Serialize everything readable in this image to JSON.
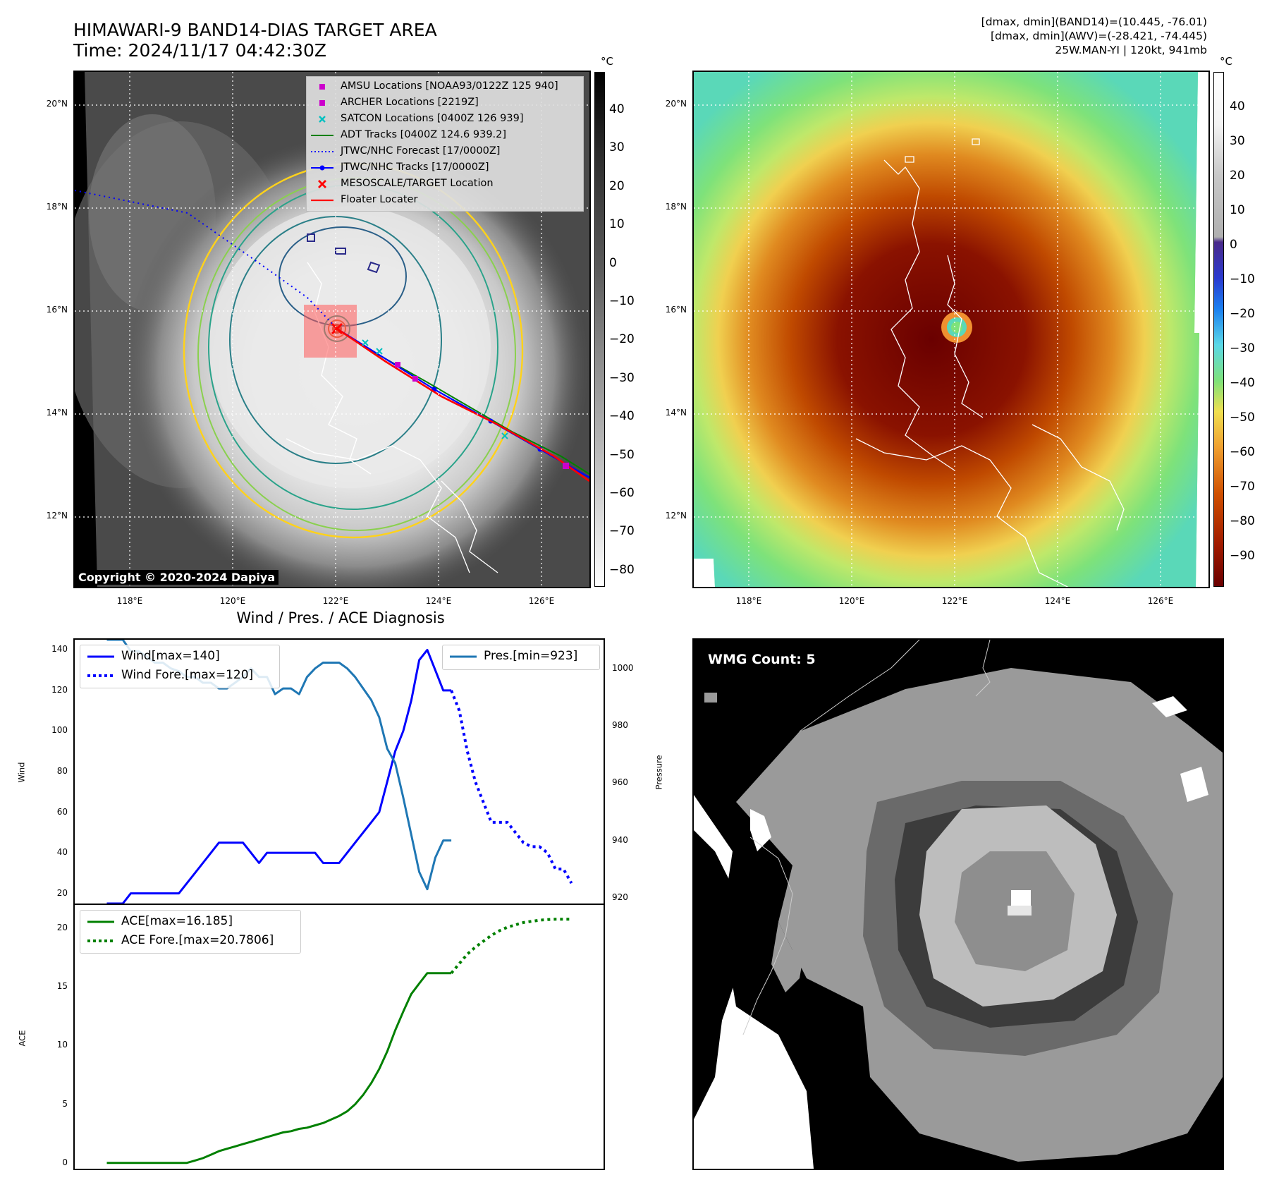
{
  "header": {
    "title_line1": "HIMAWARI-9 BAND14-DIAS TARGET AREA",
    "title_line2": "Time: 2024/11/17 04:42:30Z",
    "info_line1": "[dmax, dmin](BAND14)=(10.445, -76.01)",
    "info_line2": "[dmax, dmin](AWV)=(-28.421, -74.445)",
    "info_line3": "25W.MAN-YI | 120kt, 941mb"
  },
  "map_axes": {
    "lat_labels": [
      "20°N",
      "18°N",
      "16°N",
      "14°N",
      "12°N"
    ],
    "lon_labels": [
      "118°E",
      "120°E",
      "122°E",
      "124°E",
      "126°E"
    ]
  },
  "left_map": {
    "copyright": "Copyright © 2020-2024 Dapiya",
    "colorbar_unit": "°C",
    "colorbar_ticks": [
      "40",
      "30",
      "20",
      "10",
      "0",
      "−10",
      "−20",
      "−30",
      "−40",
      "−50",
      "−60",
      "−70",
      "−80"
    ],
    "legend": [
      {
        "label": "AMSU Locations [NOAA93/0122Z 125 940]",
        "marker": "square",
        "color": "#cc00cc"
      },
      {
        "label": "ARCHER Locations [2219Z]",
        "marker": "square",
        "color": "#cc00cc"
      },
      {
        "label": "SATCON Locations [0400Z 126 939]",
        "marker": "x",
        "color": "#00c0c0"
      },
      {
        "label": "ADT Tracks [0400Z 124.6 939.2]",
        "marker": "line",
        "color": "#008000"
      },
      {
        "label": "JTWC/NHC Forecast [17/0000Z]",
        "marker": "dotted",
        "color": "#0000ff"
      },
      {
        "label": "JTWC/NHC Tracks [17/0000Z]",
        "marker": "line-dot",
        "color": "#0000ff"
      },
      {
        "label": "MESOSCALE/TARGET Location",
        "marker": "x",
        "color": "#ff0000"
      },
      {
        "label": "Floater Locater",
        "marker": "line",
        "color": "#ff0000"
      }
    ],
    "colors": {
      "amsu": "#cc00cc",
      "satcon": "#00c0c0",
      "adt": "#008000",
      "jtwc": "#0000ff",
      "target": "#ff0000"
    }
  },
  "right_map": {
    "colorbar_unit": "°C",
    "colorbar_ticks": [
      "40",
      "30",
      "20",
      "10",
      "0",
      "−10",
      "−20",
      "−30",
      "−40",
      "−50",
      "−60",
      "−70",
      "−80",
      "−90"
    ]
  },
  "wmg": {
    "label": "WMG Count: 5"
  },
  "diagnosis": {
    "title": "Wind / Pres. / ACE Diagnosis",
    "wind_ylabel": "Wind",
    "pres_ylabel": "Pressure",
    "ace_ylabel": "ACE",
    "wind_ticks": [
      "140",
      "120",
      "100",
      "80",
      "60",
      "40",
      "20"
    ],
    "pres_ticks": [
      "1000",
      "980",
      "960",
      "940",
      "920"
    ],
    "ace_ticks": [
      "20",
      "15",
      "10",
      "5",
      "0"
    ],
    "legend_wind": "Wind[max=140]",
    "legend_wind_fore": "Wind Fore.[max=120]",
    "legend_pres": "Pres.[min=923]",
    "legend_ace": "ACE[max=16.185]",
    "legend_ace_fore": "ACE Fore.[max=20.7806]"
  },
  "chart_data": [
    {
      "type": "line",
      "title": "Wind / Pres. / ACE Diagnosis",
      "xlabel": "",
      "x": [
        0,
        1,
        2,
        3,
        4,
        5,
        6,
        7,
        8,
        9,
        10,
        11,
        12,
        13,
        14,
        15,
        16,
        17,
        18,
        19,
        20,
        21,
        22,
        23,
        24,
        25,
        26,
        27,
        28,
        29,
        30,
        31,
        32,
        33,
        34,
        35,
        36,
        37,
        38,
        39,
        40,
        41,
        42,
        43,
        44,
        45,
        46,
        47,
        48,
        49,
        50,
        51,
        52,
        53,
        54,
        55,
        56,
        57,
        58
      ],
      "ylim": [
        15,
        145
      ],
      "y2lim": [
        918,
        1010
      ],
      "series": [
        {
          "name": "Wind[max=140]",
          "axis": "left",
          "color": "#0000ff",
          "style": "solid",
          "x": [
            0,
            1,
            2,
            3,
            4,
            5,
            6,
            7,
            8,
            9,
            10,
            11,
            12,
            13,
            14,
            15,
            16,
            17,
            18,
            19,
            20,
            21,
            22,
            23,
            24,
            25,
            26,
            27,
            28,
            29,
            30,
            31,
            32,
            33,
            34,
            35,
            36,
            37,
            38,
            39,
            40,
            41,
            42,
            43
          ],
          "values": [
            15,
            15,
            15,
            20,
            20,
            20,
            20,
            20,
            20,
            20,
            25,
            30,
            35,
            40,
            45,
            45,
            45,
            45,
            40,
            35,
            40,
            40,
            40,
            40,
            40,
            40,
            40,
            35,
            35,
            35,
            40,
            45,
            50,
            55,
            60,
            75,
            90,
            100,
            115,
            135,
            140,
            130,
            120,
            120
          ]
        },
        {
          "name": "Wind Fore.[max=120]",
          "axis": "left",
          "color": "#0000ff",
          "style": "dotted",
          "x": [
            43,
            44,
            45,
            46,
            47,
            48,
            49,
            50,
            51,
            52,
            53,
            54,
            55,
            56,
            57,
            58
          ],
          "values": [
            120,
            110,
            90,
            75,
            65,
            55,
            55,
            55,
            50,
            45,
            43,
            43,
            40,
            32,
            32,
            25
          ]
        },
        {
          "name": "Pres.[min=923]",
          "axis": "right",
          "color": "#1f77b4",
          "style": "solid",
          "x": [
            0,
            1,
            2,
            3,
            4,
            5,
            6,
            7,
            8,
            9,
            10,
            11,
            12,
            13,
            14,
            15,
            16,
            17,
            18,
            19,
            20,
            21,
            22,
            23,
            24,
            25,
            26,
            27,
            28,
            29,
            30,
            31,
            32,
            33,
            34,
            35,
            36,
            37,
            38,
            39,
            40,
            41,
            42,
            43
          ],
          "values": [
            1010,
            1010,
            1010,
            1006,
            1006,
            1004,
            1002,
            1002,
            1000,
            999,
            997,
            997,
            995,
            995,
            993,
            993,
            995,
            997,
            1000,
            997,
            997,
            991,
            993,
            993,
            991,
            997,
            1000,
            1002,
            1002,
            1002,
            1000,
            997,
            993,
            989,
            983,
            972,
            967,
            955,
            942,
            929,
            923,
            934,
            940,
            940
          ]
        },
        {
          "name": "ACE[max=16.185]",
          "axis": "ace",
          "color": "#008000",
          "style": "solid",
          "x": [
            0,
            1,
            2,
            3,
            4,
            5,
            6,
            7,
            8,
            9,
            10,
            11,
            12,
            13,
            14,
            15,
            16,
            17,
            18,
            19,
            20,
            21,
            22,
            23,
            24,
            25,
            26,
            27,
            28,
            29,
            30,
            31,
            32,
            33,
            34,
            35,
            36,
            37,
            38,
            39,
            40,
            41,
            42,
            43
          ],
          "values": [
            0,
            0,
            0,
            0,
            0,
            0,
            0,
            0,
            0,
            0,
            0,
            0.2,
            0.4,
            0.7,
            1.0,
            1.2,
            1.4,
            1.6,
            1.8,
            2.0,
            2.2,
            2.4,
            2.6,
            2.7,
            2.9,
            3.0,
            3.2,
            3.4,
            3.7,
            4.0,
            4.4,
            5.0,
            5.8,
            6.8,
            8.0,
            9.5,
            11.3,
            12.9,
            14.4,
            15.3,
            16.185,
            16.185,
            16.185,
            16.185
          ]
        },
        {
          "name": "ACE Fore.[max=20.7806]",
          "axis": "ace",
          "color": "#008000",
          "style": "dotted",
          "x": [
            43,
            44,
            45,
            46,
            47,
            48,
            49,
            50,
            51,
            52,
            53,
            54,
            55,
            56,
            57,
            58
          ],
          "values": [
            16.185,
            17.0,
            17.8,
            18.4,
            18.9,
            19.4,
            19.8,
            20.1,
            20.3,
            20.5,
            20.6,
            20.7,
            20.75,
            20.78,
            20.78,
            20.7806
          ]
        }
      ],
      "ace_ylim": [
        -0.5,
        22
      ]
    }
  ]
}
